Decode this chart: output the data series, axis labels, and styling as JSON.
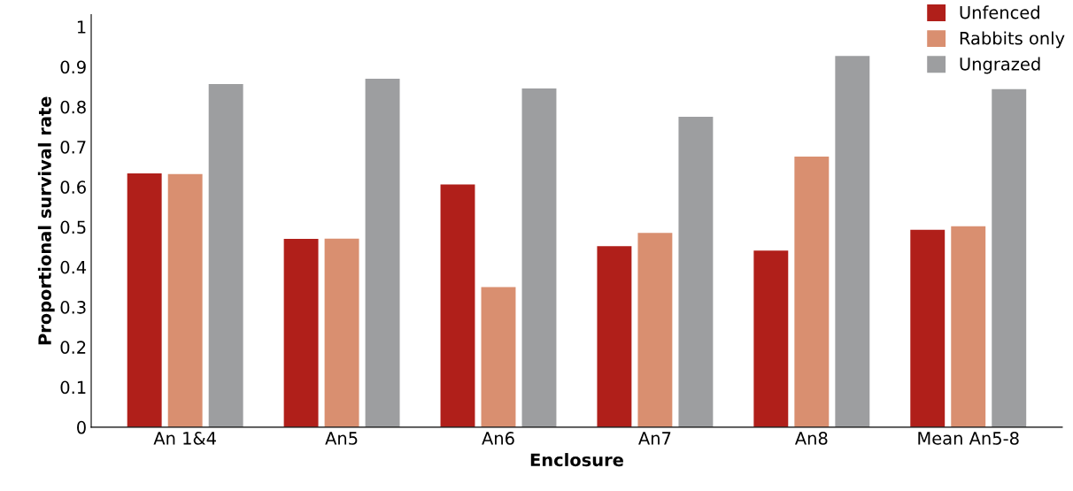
{
  "chart_data": {
    "type": "bar",
    "xlabel": "Enclosure",
    "ylabel": "Proportional survival rate",
    "categories": [
      "An 1&4",
      "An5",
      "An6",
      "An7",
      "An8",
      "Mean An5-8"
    ],
    "series": [
      {
        "name": "Unfenced",
        "color": "#b01f1a",
        "values": [
          0.634,
          0.47,
          0.606,
          0.452,
          0.441,
          0.493
        ]
      },
      {
        "name": "Rabbits only",
        "color": "#d98f70",
        "values": [
          0.632,
          0.471,
          0.35,
          0.485,
          0.676,
          0.502
        ]
      },
      {
        "name": "Ungrazed",
        "color": "#9d9ea0",
        "values": [
          0.857,
          0.87,
          0.846,
          0.775,
          0.927,
          0.844
        ]
      }
    ],
    "ylim": [
      0,
      1.03
    ],
    "yticks": [
      0,
      0.1,
      0.2,
      0.3,
      0.4,
      0.5,
      0.6,
      0.7,
      0.8,
      0.9,
      1
    ],
    "grid": false,
    "legend": "top right"
  }
}
